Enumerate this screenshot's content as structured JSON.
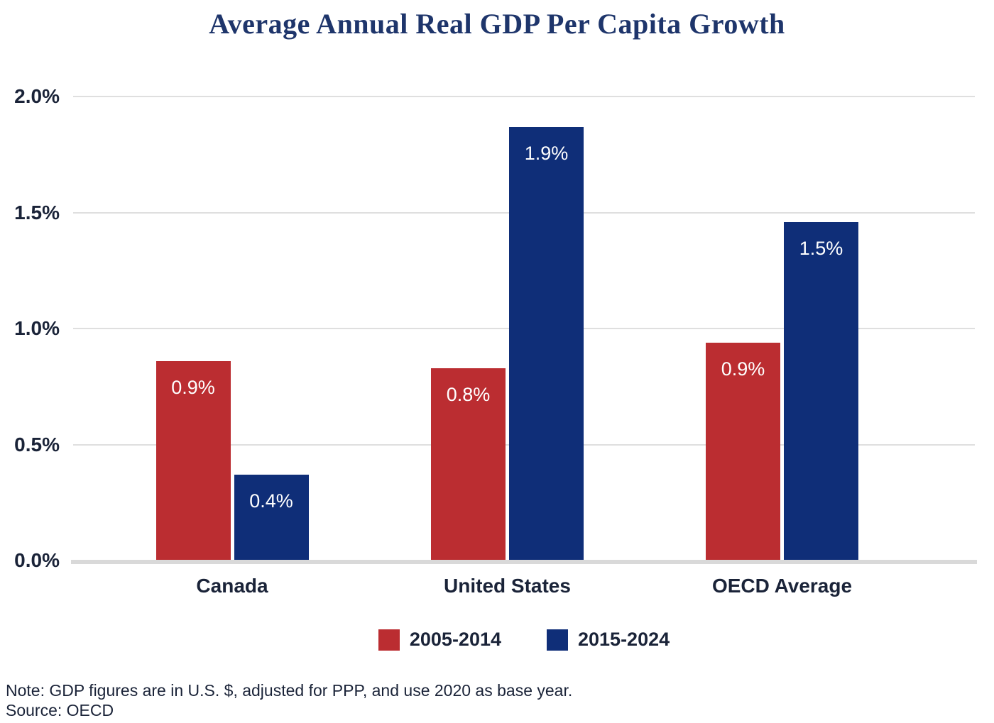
{
  "title": "Average Annual Real GDP Per Capita Growth",
  "colors": {
    "title_text": "#1E356B",
    "body_text": "#1A2338",
    "bar_value_label": "#FFFFFF",
    "gridline": "#DFDFDF",
    "axis_line": "#D9D9D9",
    "series_2005_2014": "#BB2D31",
    "series_2015_2024": "#0F2E78"
  },
  "chart_data": {
    "type": "bar",
    "title": "Average Annual Real GDP Per Capita Growth",
    "xlabel": "",
    "ylabel": "",
    "categories": [
      "Canada",
      "United States",
      "OECD Average"
    ],
    "series": [
      {
        "name": "2005-2014",
        "color": "#BB2D31",
        "values": [
          0.86,
          0.83,
          0.94
        ],
        "labels": [
          "0.9%",
          "0.8%",
          "0.9%"
        ]
      },
      {
        "name": "2015-2024",
        "color": "#0F2E78",
        "values": [
          0.37,
          1.87,
          1.46
        ],
        "labels": [
          "0.4%",
          "1.9%",
          "1.5%"
        ]
      }
    ],
    "ylim": [
      0,
      2.0
    ],
    "ytick_values": [
      0,
      0.5,
      1.0,
      1.5,
      2.0
    ],
    "yticks": [
      "0.0%",
      "0.5%",
      "1.0%",
      "1.5%",
      "2.0%"
    ],
    "grid": "horizontal",
    "legend_position": "bottom"
  },
  "footnote": {
    "note": "Note: GDP figures are in U.S. $, adjusted for PPP, and use 2020 as base year.",
    "source": "Source: OECD"
  }
}
